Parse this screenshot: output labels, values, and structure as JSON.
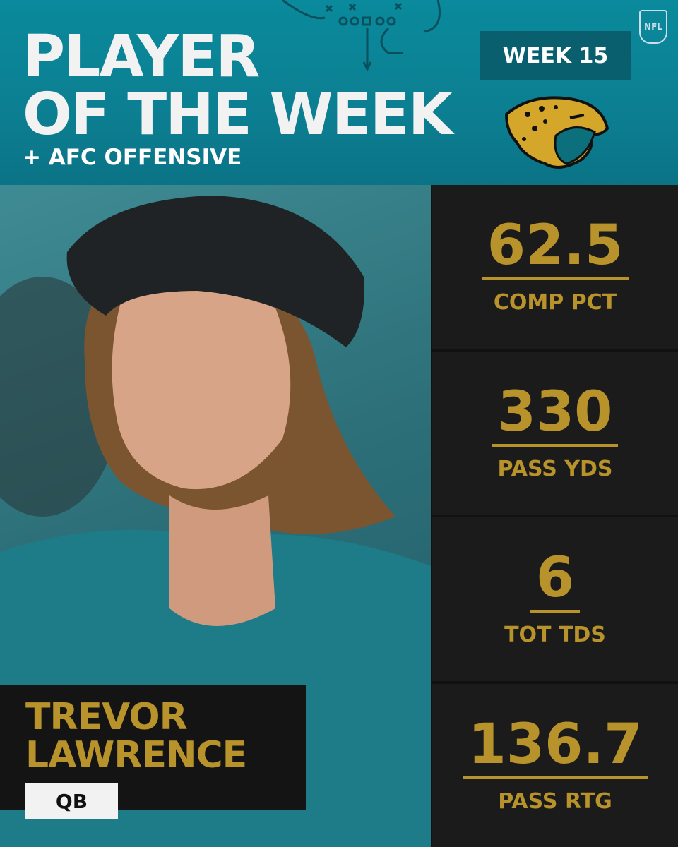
{
  "header": {
    "title_line1": "PLAYER",
    "title_line2": "OF THE WEEK",
    "subtitle": "+ AFC OFFENSIVE",
    "week": "WEEK 15",
    "league_badge": "NFL"
  },
  "player": {
    "first_name": "TREVOR",
    "last_name": "LAWRENCE",
    "position": "QB"
  },
  "stats": [
    {
      "value": "62.5",
      "label": "COMP PCT"
    },
    {
      "value": "330",
      "label": "PASS YDS"
    },
    {
      "value": "6",
      "label": "TOT TDS"
    },
    {
      "value": "136.7",
      "label": "PASS RTG"
    }
  ]
}
